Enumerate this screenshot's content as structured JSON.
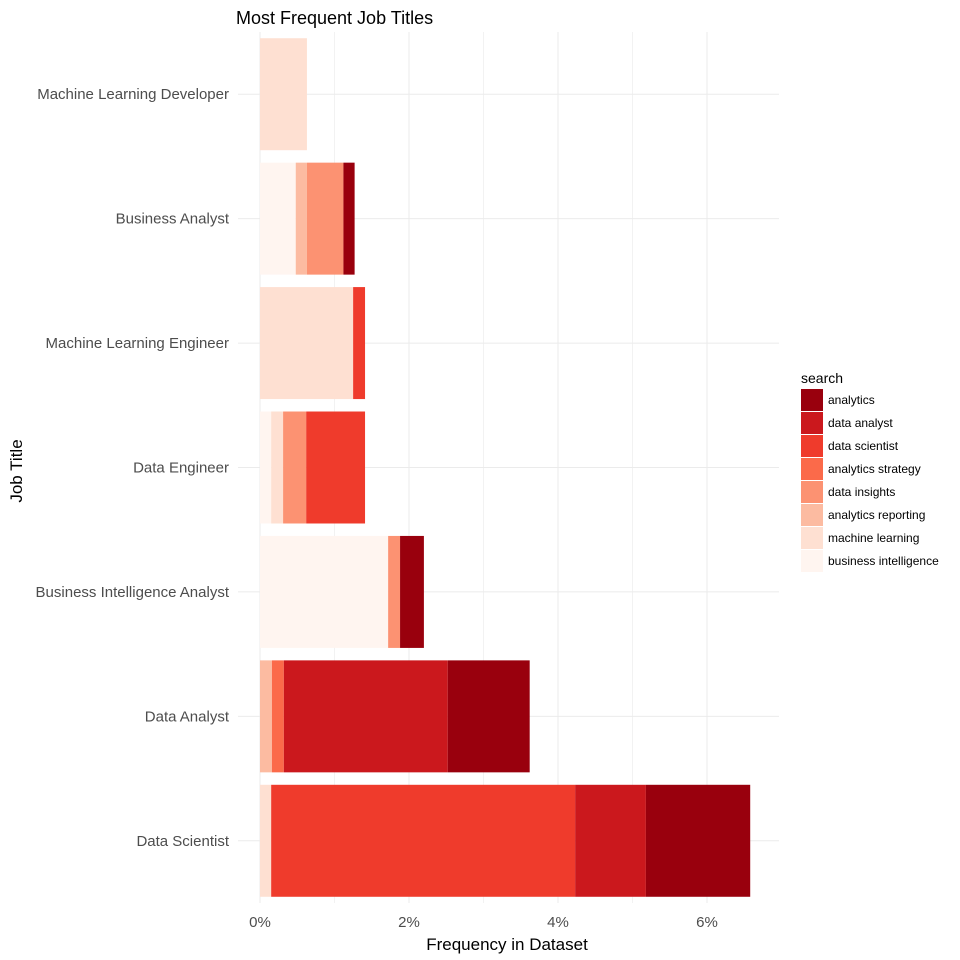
{
  "chart_data": {
    "type": "bar",
    "orientation": "horizontal",
    "stacked": true,
    "title": "Most Frequent Job Titles",
    "xlabel": "Frequency in Dataset",
    "ylabel": "Job Title",
    "xlim": [
      0,
      6.95
    ],
    "x_ticks": [
      0,
      2,
      4,
      6
    ],
    "x_tick_labels": [
      "0%",
      "2%",
      "4%",
      "6%"
    ],
    "grid": true,
    "legend": {
      "title": "search",
      "placement": "right"
    },
    "categories": [
      "Data Scientist",
      "Data Analyst",
      "Business Intelligence Analyst",
      "Data Engineer",
      "Machine Learning Engineer",
      "Business Analyst",
      "Machine Learning Developer"
    ],
    "series": [
      {
        "name": "business intelligence",
        "color": "#fff5f0",
        "values": [
          0,
          0,
          1.72,
          0.15,
          0,
          0.48,
          0
        ]
      },
      {
        "name": "machine learning",
        "color": "#fee0d2",
        "values": [
          0.15,
          0,
          0,
          0.16,
          1.25,
          0,
          0.63
        ]
      },
      {
        "name": "analytics reporting",
        "color": "#fcbba1",
        "values": [
          0,
          0.16,
          0,
          0,
          0,
          0.15,
          0
        ]
      },
      {
        "name": "data insights",
        "color": "#fc9272",
        "values": [
          0,
          0,
          0.16,
          0.31,
          0,
          0.49,
          0
        ]
      },
      {
        "name": "analytics strategy",
        "color": "#fb6a4a",
        "values": [
          0,
          0.16,
          0,
          0,
          0,
          0,
          0
        ]
      },
      {
        "name": "data scientist",
        "color": "#ef3b2c",
        "values": [
          4.08,
          0,
          0,
          0.79,
          0.16,
          0,
          0
        ]
      },
      {
        "name": "data analyst",
        "color": "#cb181d",
        "values": [
          0.95,
          2.2,
          0,
          0,
          0,
          0,
          0
        ]
      },
      {
        "name": "analytics",
        "color": "#99000d",
        "values": [
          1.4,
          1.1,
          0.32,
          0,
          0,
          0.15,
          0
        ]
      }
    ]
  }
}
